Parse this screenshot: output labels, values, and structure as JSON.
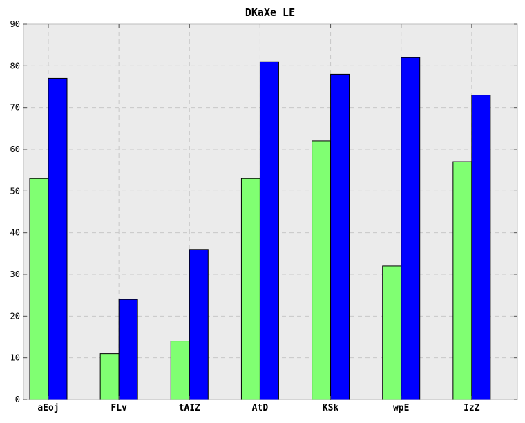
{
  "chart_data": {
    "type": "bar",
    "title": "DKaXe LE",
    "xlabel": "",
    "ylabel": "",
    "categories": [
      "aEoj",
      "FLv",
      "tAIZ",
      "AtD",
      "KSk",
      "wpE",
      "IzZ"
    ],
    "series": [
      {
        "color": "#80ff72",
        "values": [
          53,
          11,
          14,
          53,
          62,
          32,
          57
        ]
      },
      {
        "color": "#0000ff",
        "values": [
          77,
          24,
          36,
          81,
          78,
          82,
          73
        ]
      }
    ],
    "ylim": [
      0,
      90
    ],
    "yticks": [
      0,
      10,
      20,
      30,
      40,
      50,
      60,
      70,
      80,
      90
    ],
    "grid": true,
    "background_color": "#ebebeb",
    "grid_color": "#c8c8c8"
  }
}
